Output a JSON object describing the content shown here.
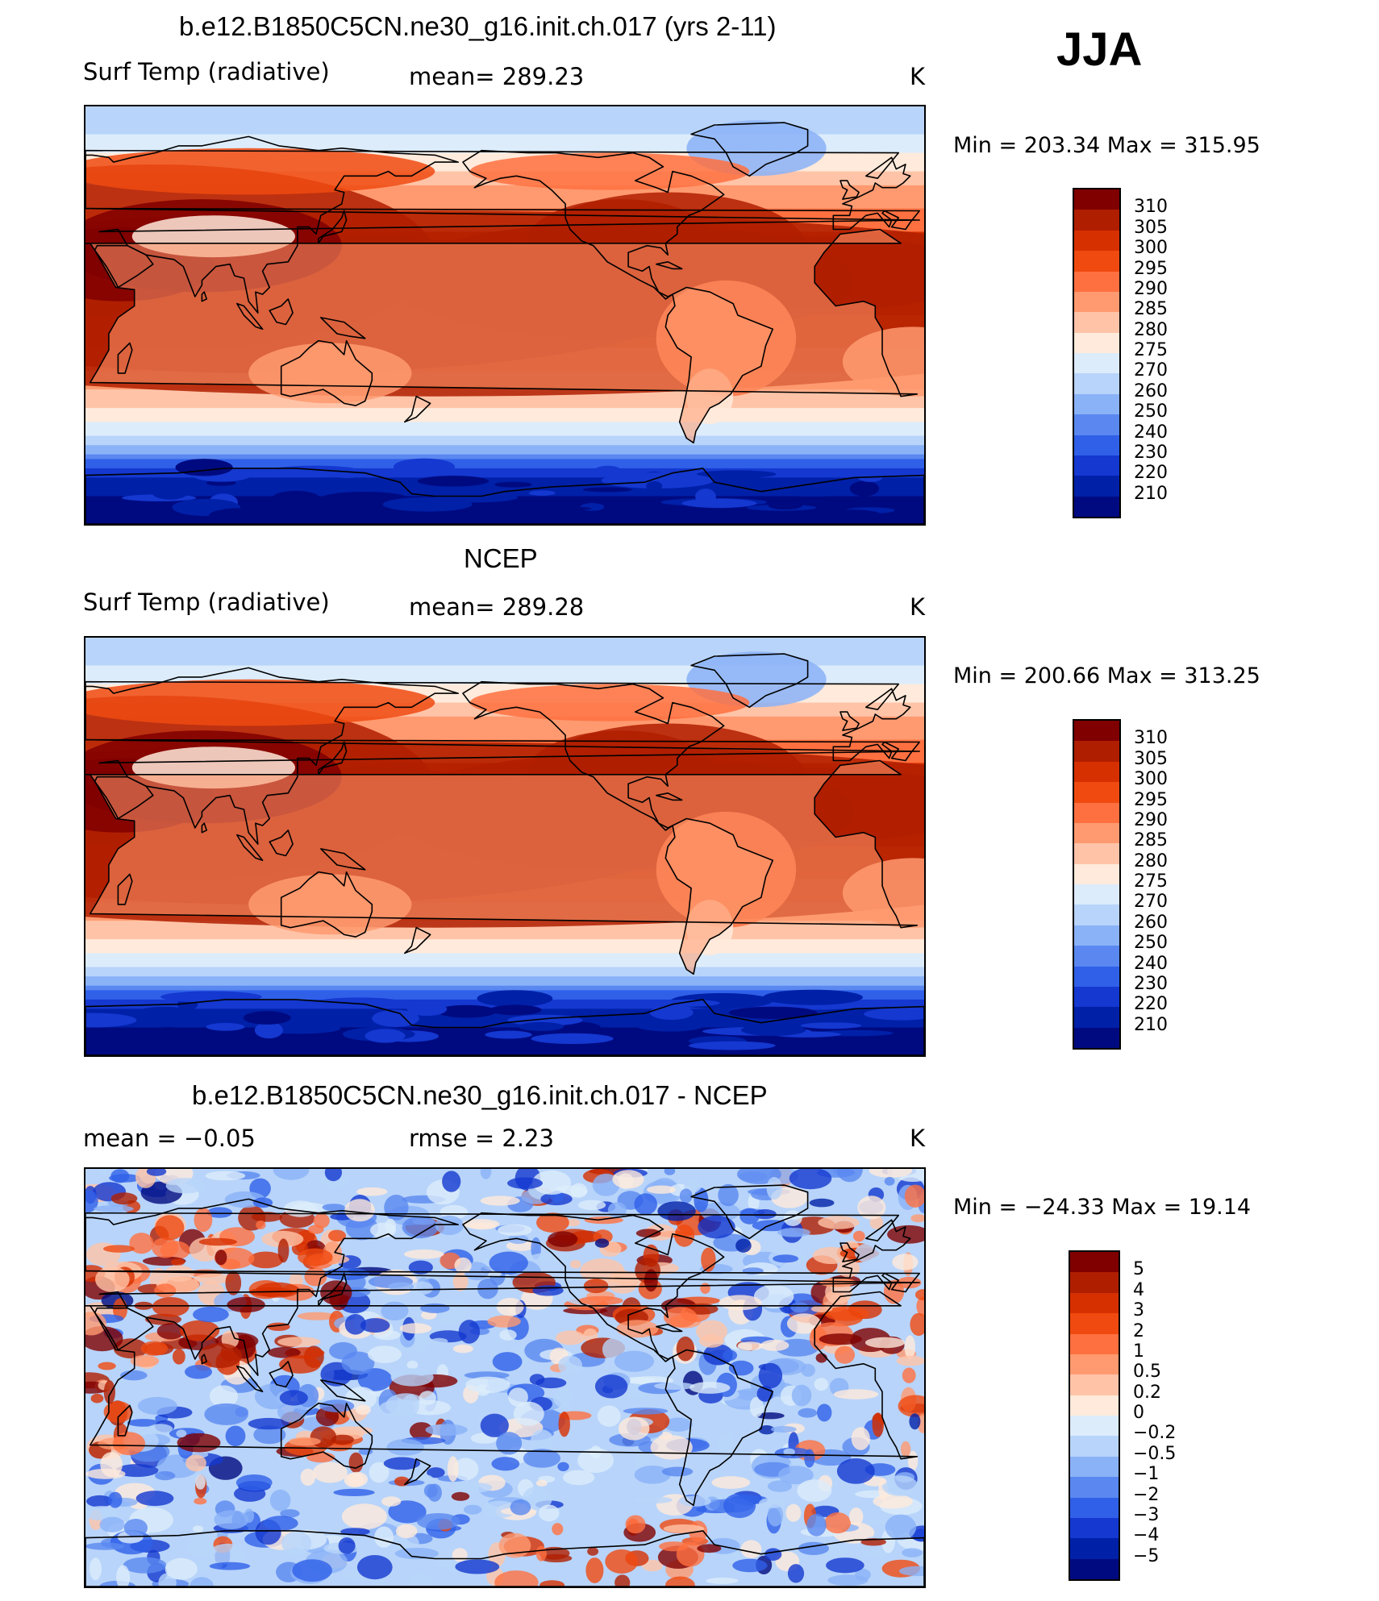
{
  "season": "JJA",
  "panels": [
    {
      "id": "model",
      "title": "b.e12.B1850C5CN.ne30_g16.init.ch.017 (yrs 2-11)",
      "left_label": "Surf Temp (radiative)",
      "center_label": "mean=  289.23",
      "units": "K",
      "minmax": "Min  =  203.34  Max  =  315.95",
      "palette": "temp",
      "colorbar": {
        "labels": [
          "310",
          "305",
          "300",
          "295",
          "290",
          "285",
          "280",
          "275",
          "270",
          "260",
          "250",
          "240",
          "230",
          "220",
          "210"
        ],
        "colors": [
          "#800000",
          "#b01e00",
          "#d73000",
          "#f04a10",
          "#ff7040",
          "#ff9a70",
          "#ffc4a8",
          "#ffeadb",
          "#dcecfb",
          "#b8d4fa",
          "#8ab2f7",
          "#5a88f0",
          "#3060e8",
          "#1438d0",
          "#0020a8",
          "#000a80"
        ]
      }
    },
    {
      "id": "obs",
      "title": "NCEP",
      "left_label": "Surf Temp (radiative)",
      "center_label": "mean=  289.28",
      "units": "K",
      "minmax": "Min  =  200.66  Max  =  313.25",
      "palette": "temp",
      "colorbar": {
        "labels": [
          "310",
          "305",
          "300",
          "295",
          "290",
          "285",
          "280",
          "275",
          "270",
          "260",
          "250",
          "240",
          "230",
          "220",
          "210"
        ],
        "colors": [
          "#800000",
          "#b01e00",
          "#d73000",
          "#f04a10",
          "#ff7040",
          "#ff9a70",
          "#ffc4a8",
          "#ffeadb",
          "#dcecfb",
          "#b8d4fa",
          "#8ab2f7",
          "#5a88f0",
          "#3060e8",
          "#1438d0",
          "#0020a8",
          "#000a80"
        ]
      }
    },
    {
      "id": "diff",
      "title": "b.e12.B1850C5CN.ne30_g16.init.ch.017 - NCEP",
      "left_label": "mean =    −0.05",
      "center_label": "rmse =     2.23",
      "units": "K",
      "minmax": "Min  =  −24.33  Max  =    19.14",
      "palette": "diff",
      "colorbar": {
        "labels": [
          "5",
          "4",
          "3",
          "2",
          "1",
          "0.5",
          "0.2",
          "0",
          "−0.2",
          "−0.5",
          "−1",
          "−2",
          "−3",
          "−4",
          "−5"
        ],
        "colors": [
          "#800000",
          "#b01e00",
          "#d73000",
          "#f04a10",
          "#ff7040",
          "#ff9a70",
          "#ffc4a8",
          "#ffeadb",
          "#dcecfb",
          "#b8d4fa",
          "#8ab2f7",
          "#5a88f0",
          "#3060e8",
          "#1438d0",
          "#0020a8",
          "#000a80"
        ]
      }
    }
  ]
}
